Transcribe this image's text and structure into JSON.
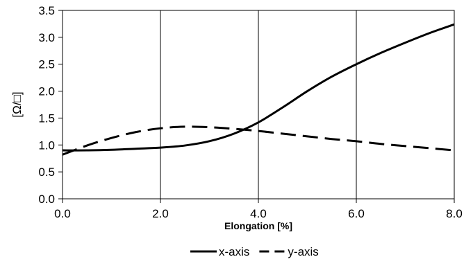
{
  "chart_data": {
    "type": "line",
    "title": "",
    "xlabel": "Elongation [%]",
    "ylabel": "[Ω/□]",
    "xlim": [
      0,
      8
    ],
    "ylim": [
      0,
      3.5
    ],
    "grid": {
      "vertical": true,
      "horizontal": false
    },
    "legend": "bottom",
    "x_ticks": [
      {
        "value": 0,
        "label": "0.0"
      },
      {
        "value": 2,
        "label": "2.0"
      },
      {
        "value": 4,
        "label": "4.0"
      },
      {
        "value": 6,
        "label": "6.0"
      },
      {
        "value": 8,
        "label": "8.0"
      }
    ],
    "y_ticks": [
      {
        "value": 0,
        "label": "0.0"
      },
      {
        "value": 0.5,
        "label": "0.5"
      },
      {
        "value": 1,
        "label": "1.0"
      },
      {
        "value": 1.5,
        "label": "1.5"
      },
      {
        "value": 2,
        "label": "2.0"
      },
      {
        "value": 2.5,
        "label": "2.5"
      },
      {
        "value": 3,
        "label": "3.0"
      },
      {
        "value": 3.5,
        "label": "3.5"
      }
    ],
    "series": [
      {
        "name": "x-axis",
        "style": "solid",
        "color": "#000000",
        "points": [
          [
            0,
            0.9
          ],
          [
            0.5,
            0.9
          ],
          [
            1,
            0.91
          ],
          [
            1.5,
            0.93
          ],
          [
            2,
            0.95
          ],
          [
            2.5,
            0.99
          ],
          [
            3,
            1.07
          ],
          [
            3.5,
            1.21
          ],
          [
            4,
            1.42
          ],
          [
            4.5,
            1.7
          ],
          [
            5,
            2.0
          ],
          [
            5.5,
            2.27
          ],
          [
            6,
            2.5
          ],
          [
            6.5,
            2.71
          ],
          [
            7,
            2.9
          ],
          [
            7.5,
            3.08
          ],
          [
            8,
            3.24
          ]
        ]
      },
      {
        "name": "y-axis",
        "style": "dashed",
        "color": "#000000",
        "points": [
          [
            0,
            0.82
          ],
          [
            0.5,
            0.99
          ],
          [
            1,
            1.13
          ],
          [
            1.5,
            1.24
          ],
          [
            2,
            1.31
          ],
          [
            2.5,
            1.34
          ],
          [
            3,
            1.33
          ],
          [
            3.5,
            1.3
          ],
          [
            4,
            1.26
          ],
          [
            4.5,
            1.21
          ],
          [
            5,
            1.16
          ],
          [
            5.5,
            1.11
          ],
          [
            6,
            1.07
          ],
          [
            6.5,
            1.02
          ],
          [
            7,
            0.98
          ],
          [
            7.5,
            0.94
          ],
          [
            8,
            0.9
          ]
        ]
      }
    ]
  }
}
